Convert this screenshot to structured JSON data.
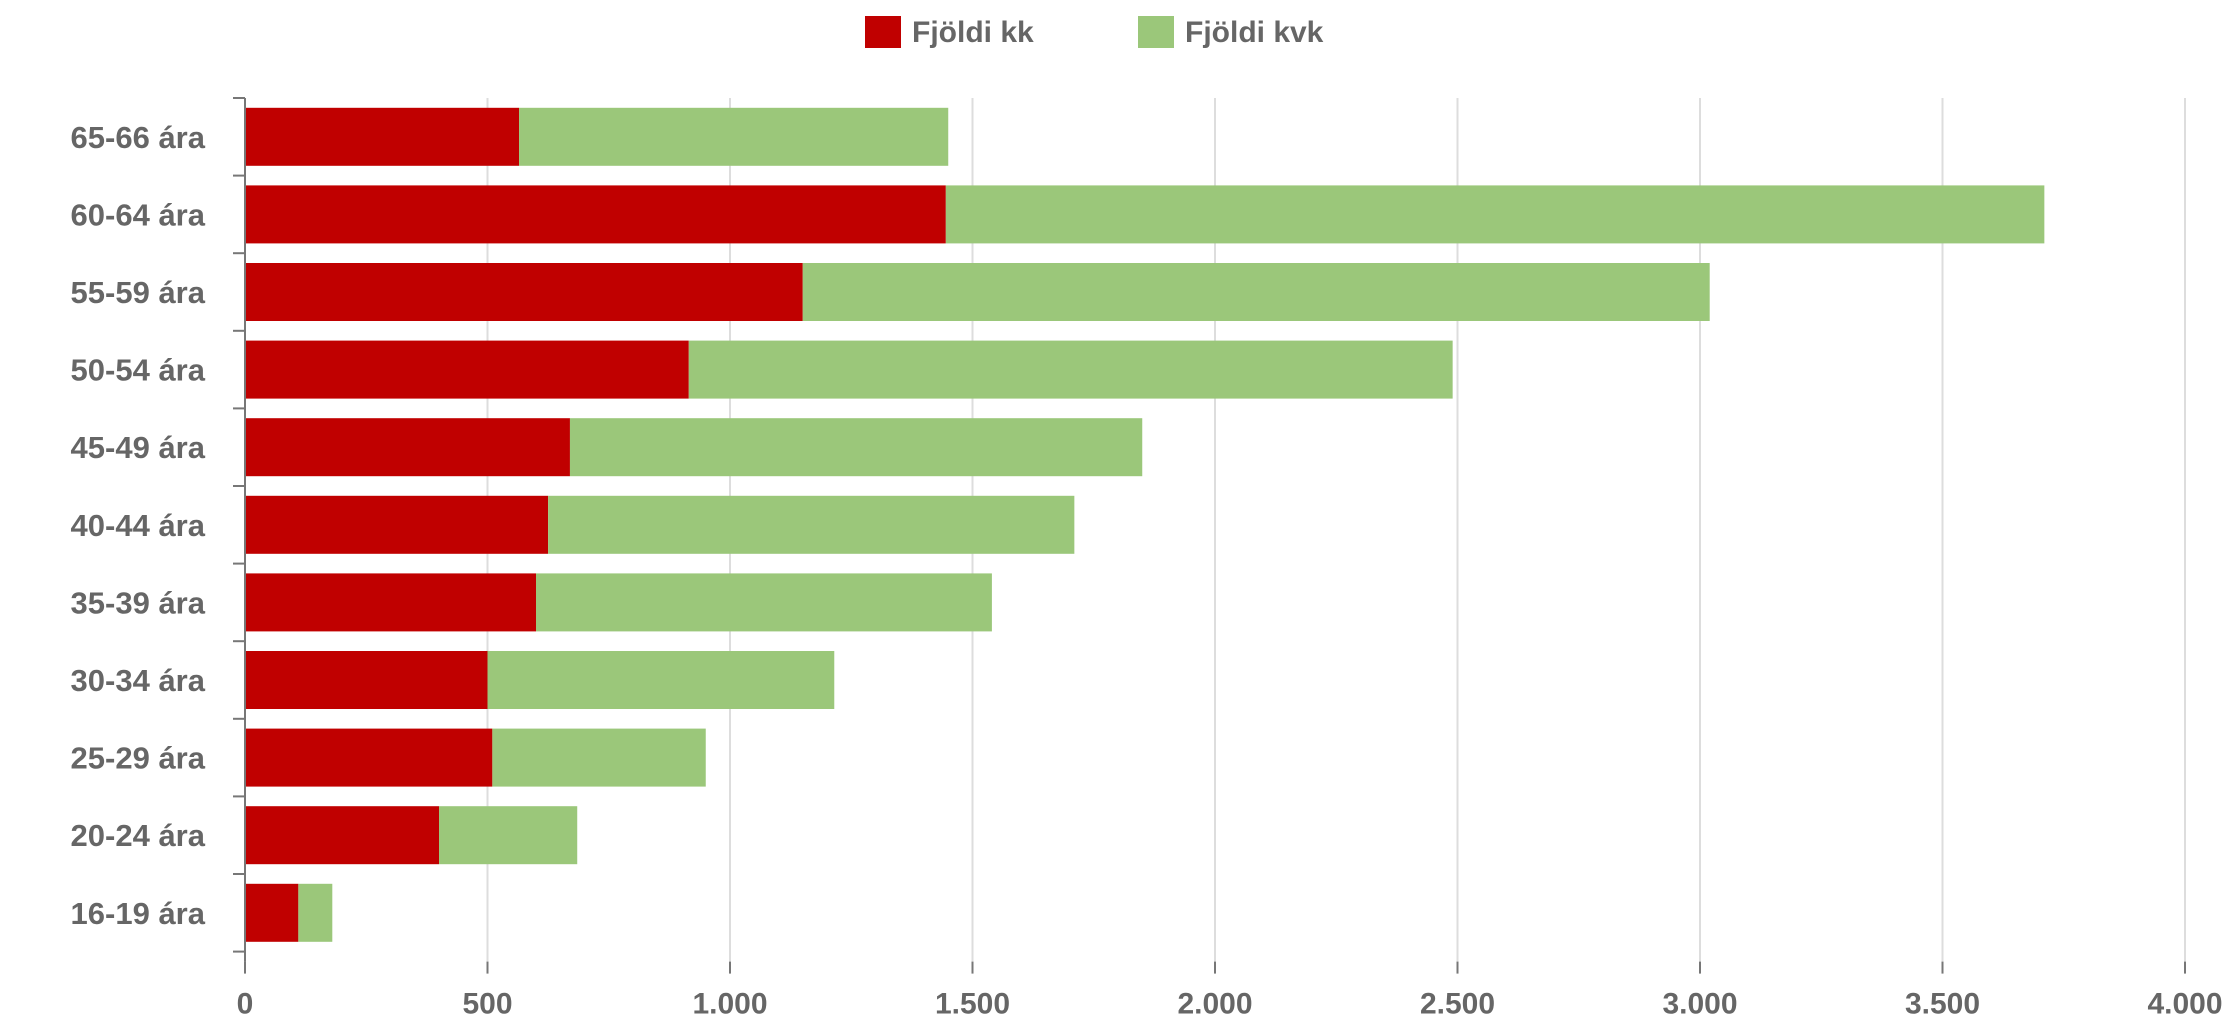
{
  "chart_data": {
    "type": "bar",
    "orientation": "horizontal",
    "stacked": true,
    "title": "",
    "xlabel": "",
    "ylabel": "",
    "categories": [
      "65-66 ára",
      "60-64 ára",
      "55-59 ára",
      "50-54 ára",
      "45-49 ára",
      "40-44 ára",
      "35-39 ára",
      "30-34 ára",
      "25-29 ára",
      "20-24 ára",
      "16-19 ára"
    ],
    "series": [
      {
        "name": "Fjöldi kk",
        "color": "#c00000",
        "values": [
          565,
          1445,
          1150,
          915,
          670,
          625,
          600,
          500,
          510,
          400,
          110
        ]
      },
      {
        "name": "Fjöldi kvk",
        "color": "#9bc77a",
        "values": [
          885,
          2265,
          1870,
          1575,
          1180,
          1085,
          940,
          715,
          440,
          285,
          70
        ]
      }
    ],
    "xlim": [
      0,
      4000
    ],
    "x_ticks": [
      0,
      500,
      1000,
      1500,
      2000,
      2500,
      3000,
      3500,
      4000
    ],
    "x_tick_labels": [
      "0",
      "500",
      "1.000",
      "1.500",
      "2.000",
      "2.500",
      "3.000",
      "3.500",
      "4.000"
    ],
    "grid": true,
    "legend": "top-center"
  }
}
